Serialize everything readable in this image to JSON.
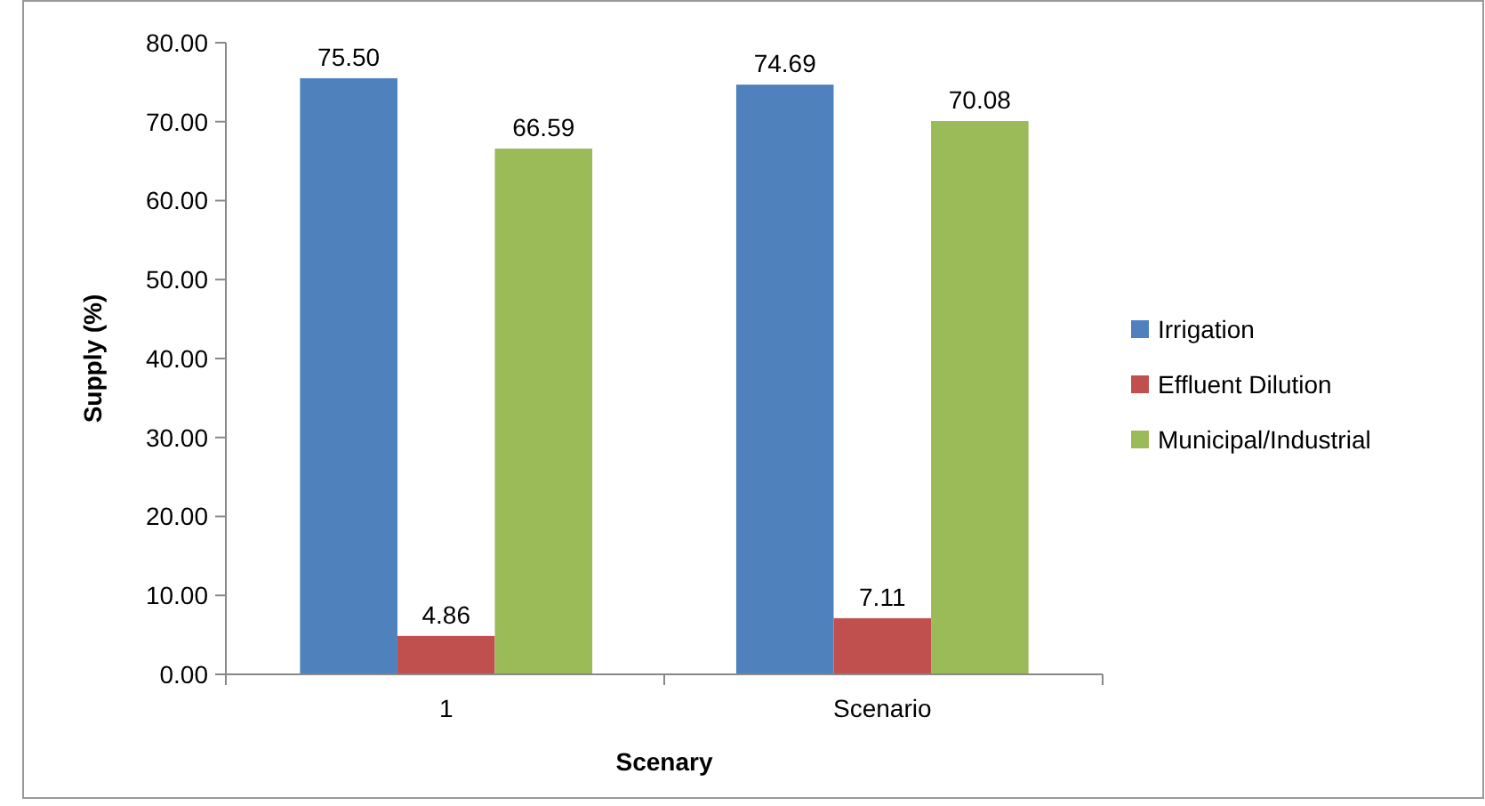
{
  "chart_data": {
    "type": "bar",
    "xlabel": "Scenary",
    "ylabel": "Supply (%)",
    "categories": [
      "1",
      "Scenario"
    ],
    "series": [
      {
        "name": "Irrigation",
        "color": "#4f81bd",
        "values": [
          75.5,
          74.69
        ],
        "value_labels": [
          "75.50",
          "74.69"
        ]
      },
      {
        "name": "Effluent Dilution",
        "color": "#c0504d",
        "values": [
          4.86,
          7.11
        ],
        "value_labels": [
          "4.86",
          "7.11"
        ]
      },
      {
        "name": "Municipal/Industrial",
        "color": "#9bbb59",
        "values": [
          66.59,
          70.08
        ],
        "value_labels": [
          "66.59",
          "70.08"
        ]
      }
    ],
    "ylim": [
      0,
      80
    ],
    "yticks": [
      {
        "value": 0,
        "label": "0.00"
      },
      {
        "value": 10,
        "label": "10.00"
      },
      {
        "value": 20,
        "label": "20.00"
      },
      {
        "value": 30,
        "label": "30.00"
      },
      {
        "value": 40,
        "label": "40.00"
      },
      {
        "value": 50,
        "label": "50.00"
      },
      {
        "value": 60,
        "label": "60.00"
      },
      {
        "value": 70,
        "label": "70.00"
      },
      {
        "value": 80,
        "label": "80.00"
      }
    ],
    "grid": false,
    "legend": "right"
  }
}
